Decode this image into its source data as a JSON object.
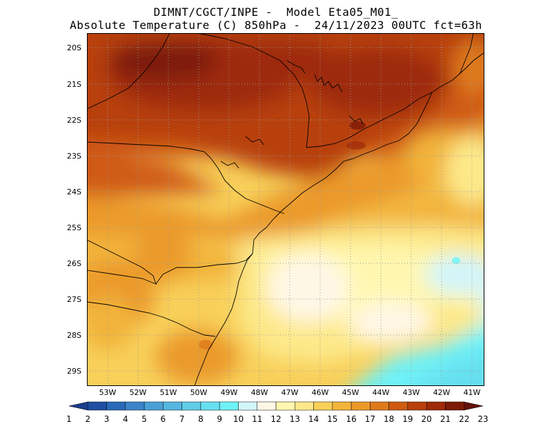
{
  "title_line1": "DIMNT/CGCT/INPE -  Model Eta05_M01_",
  "title_line2": "Absolute Temperature (C) 850hPa -  24/11/2023 00UTC fct=63h",
  "lat_labels": [
    "20S",
    "21S",
    "22S",
    "23S",
    "24S",
    "25S",
    "26S",
    "27S",
    "28S",
    "29S"
  ],
  "lon_labels": [
    "53W",
    "52W",
    "51W",
    "50W",
    "49W",
    "48W",
    "47W",
    "46W",
    "45W",
    "44W",
    "43W",
    "42W",
    "41W"
  ],
  "colorbar": {
    "labels": [
      "1",
      "2",
      "3",
      "4",
      "5",
      "6",
      "7",
      "8",
      "9",
      "10",
      "11",
      "12",
      "13",
      "14",
      "15",
      "16",
      "17",
      "18",
      "19",
      "20",
      "21",
      "22",
      "23"
    ],
    "colors": [
      "#1b3c8c",
      "#1f4fa3",
      "#2a6ab8",
      "#3a86c8",
      "#4aa0d6",
      "#55b8e0",
      "#5fcde8",
      "#66e0f0",
      "#6ef2f8",
      "#d2f5fa",
      "#fff7e6",
      "#fff7b0",
      "#fde98a",
      "#f8d05a",
      "#f2b43a",
      "#eb9a2a",
      "#df7a1c",
      "#cf5a12",
      "#b8400c",
      "#9e2a08",
      "#7e1a08",
      "#62120a"
    ]
  }
}
